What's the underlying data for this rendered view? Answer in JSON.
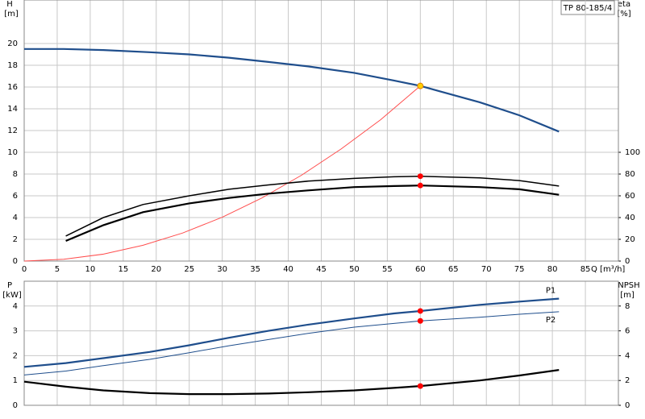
{
  "chart_data": [
    {
      "type": "line",
      "title": "TP 80-185/4",
      "ylabel": "H",
      "yunit": "[m]",
      "y2label": "eta",
      "y2unit": "[%]",
      "xlabel": "Q [m³/h]",
      "xlim": [
        0,
        90
      ],
      "xticks": [
        0,
        5,
        10,
        15,
        20,
        25,
        30,
        35,
        40,
        45,
        50,
        55,
        60,
        65,
        70,
        75,
        80,
        85
      ],
      "ylim": [
        0,
        24
      ],
      "yticks": [
        0,
        2,
        4,
        6,
        8,
        10,
        12,
        14,
        16,
        18,
        20
      ],
      "y2lim": [
        0,
        240
      ],
      "y2ticks": [
        0,
        20,
        40,
        60,
        80,
        100
      ],
      "grid": true,
      "series": [
        {
          "color": "#1f4e8c",
          "style": "thick",
          "x": [
            0,
            6,
            12,
            19,
            25,
            31,
            37,
            43,
            50,
            56,
            60,
            63,
            69,
            75,
            81
          ],
          "values": [
            19.5,
            19.5,
            19.4,
            19.2,
            19.0,
            18.7,
            18.3,
            17.9,
            17.3,
            16.6,
            16.1,
            15.6,
            14.6,
            13.4,
            11.9
          ]
        },
        {
          "color": "#ff4d4d",
          "style": "thin",
          "x": [
            0,
            6,
            12,
            18,
            24,
            30,
            36,
            42,
            48,
            54,
            60
          ],
          "values": [
            0,
            0.16,
            0.64,
            1.45,
            2.58,
            4.03,
            5.8,
            7.89,
            10.3,
            13.0,
            16.1
          ]
        },
        {
          "color": "#000000",
          "style": "medium",
          "axis": "y2",
          "x": [
            6.3,
            12,
            18,
            25,
            31,
            37,
            43,
            50,
            56,
            60,
            69,
            75,
            81
          ],
          "values": [
            23,
            40,
            52,
            60,
            66,
            70,
            73.5,
            76,
            77.5,
            78,
            76.5,
            74,
            69
          ]
        },
        {
          "color": "#000000",
          "style": "thick",
          "axis": "y2",
          "x": [
            6.3,
            12,
            18,
            25,
            31,
            37,
            43,
            50,
            56,
            60,
            69,
            75,
            81
          ],
          "values": [
            18.5,
            33,
            45,
            53,
            58,
            62,
            65,
            68,
            69,
            69.5,
            68,
            66,
            61
          ]
        },
        {
          "color": "#ffd000",
          "style": "point",
          "x": [
            60
          ],
          "values": [
            16.1
          ]
        },
        {
          "color": "#ff0000",
          "style": "point",
          "axis": "y2",
          "x": [
            60,
            60
          ],
          "values": [
            78,
            69.5
          ]
        }
      ]
    },
    {
      "type": "line",
      "ylabel": "P",
      "yunit": "[kW]",
      "y2label": "NPSH",
      "y2unit": "[m]",
      "xlim": [
        0,
        90
      ],
      "xticks": [
        0,
        5,
        10,
        15,
        20,
        25,
        30,
        35,
        40,
        45,
        50,
        55,
        60,
        65,
        70,
        75,
        80,
        85
      ],
      "ylim": [
        0,
        5
      ],
      "yticks": [
        0,
        1,
        2,
        3,
        4
      ],
      "y2lim": [
        0,
        10
      ],
      "y2ticks": [
        0,
        2,
        4,
        6,
        8
      ],
      "grid": true,
      "series": [
        {
          "name": "P1",
          "color": "#1f4e8c",
          "style": "thick",
          "x": [
            0,
            6.3,
            12,
            19,
            25,
            31,
            37,
            43,
            50,
            56,
            60,
            69,
            75,
            81
          ],
          "values": [
            1.55,
            1.7,
            1.9,
            2.15,
            2.42,
            2.72,
            3.0,
            3.25,
            3.5,
            3.7,
            3.8,
            4.05,
            4.18,
            4.3
          ]
        },
        {
          "name": "P2",
          "color": "#1f4e8c",
          "style": "thin",
          "x": [
            0,
            6.3,
            12,
            19,
            25,
            31,
            37,
            43,
            50,
            56,
            60,
            69,
            75,
            81
          ],
          "values": [
            1.22,
            1.38,
            1.6,
            1.85,
            2.12,
            2.4,
            2.65,
            2.9,
            3.15,
            3.3,
            3.4,
            3.55,
            3.67,
            3.77
          ]
        },
        {
          "color": "#000000",
          "style": "thick",
          "axis": "y2",
          "x": [
            0,
            6.3,
            12,
            19,
            25,
            31,
            37,
            43,
            50,
            56,
            60,
            69,
            75,
            81
          ],
          "values": [
            1.9,
            1.5,
            1.2,
            0.98,
            0.9,
            0.9,
            0.95,
            1.05,
            1.2,
            1.4,
            1.55,
            2.0,
            2.4,
            2.85
          ]
        },
        {
          "color": "#ff0000",
          "style": "point",
          "x": [
            60,
            60
          ],
          "values": [
            3.8,
            3.4
          ]
        },
        {
          "color": "#ff0000",
          "style": "point",
          "axis": "y2",
          "x": [
            60
          ],
          "values": [
            1.55
          ]
        }
      ]
    }
  ]
}
